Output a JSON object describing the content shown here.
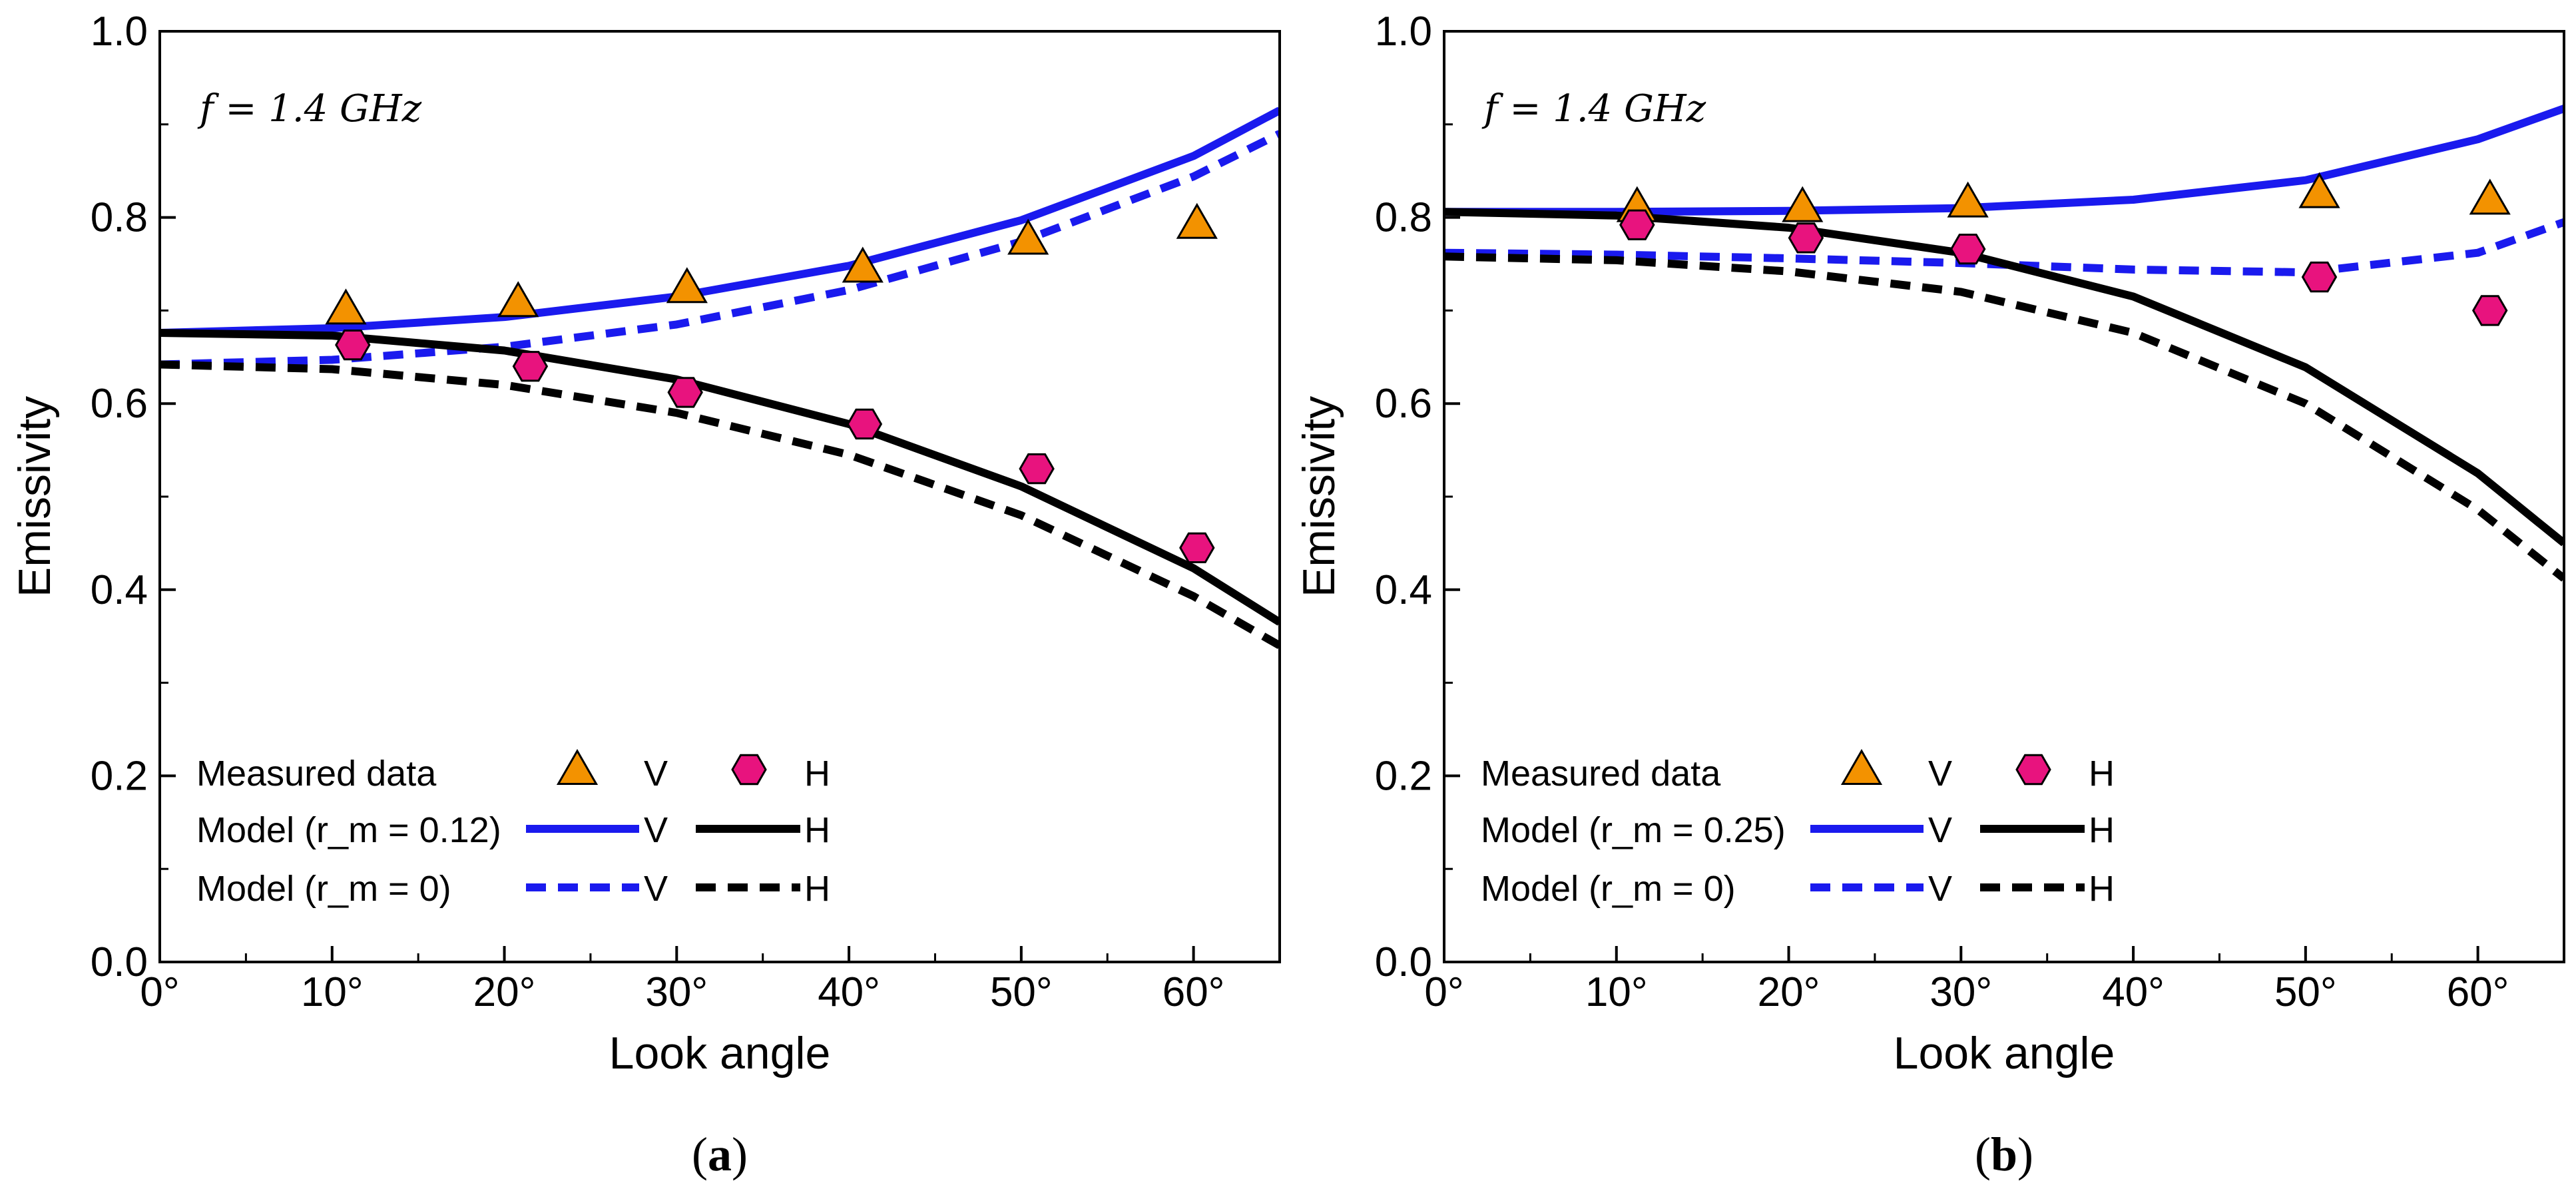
{
  "chart_data": [
    {
      "panel": "a",
      "caption_open": "(",
      "caption_letter": "a",
      "caption_close": ")",
      "type": "scatter+line",
      "annotation": "f = 1.4 GHz",
      "xlabel": "Look angle",
      "ylabel": "Emissivity",
      "xlim": [
        0,
        65
      ],
      "ylim": [
        0.0,
        1.0
      ],
      "xticks": [
        0,
        10,
        20,
        30,
        40,
        50,
        60
      ],
      "xtick_labels": [
        "0°",
        "10°",
        "20°",
        "30°",
        "40°",
        "50°",
        "60°"
      ],
      "yticks": [
        0.0,
        0.2,
        0.4,
        0.6,
        0.8,
        1.0
      ],
      "ytick_labels": [
        "0.0",
        "0.2",
        "0.4",
        "0.6",
        "0.8",
        "1.0"
      ],
      "legend": {
        "measured_label": "Measured data",
        "model_label": "Model (r_m = 0.12)",
        "model0_label": "Model (r_m = 0)",
        "v": "V",
        "h": "H"
      },
      "measured_v": {
        "x": [
          10.8,
          20.8,
          30.6,
          40.8,
          50.4,
          60.2
        ],
        "y": [
          0.7,
          0.708,
          0.723,
          0.745,
          0.775,
          0.792
        ]
      },
      "measured_h": {
        "x": [
          11.2,
          21.5,
          30.5,
          40.9,
          50.9,
          60.2
        ],
        "y": [
          0.663,
          0.64,
          0.612,
          0.578,
          0.53,
          0.445
        ]
      },
      "model_v": {
        "x": [
          0,
          10,
          20,
          30,
          40,
          50,
          60,
          65
        ],
        "y": [
          0.676,
          0.681,
          0.693,
          0.715,
          0.748,
          0.797,
          0.866,
          0.915
        ]
      },
      "model_h": {
        "x": [
          0,
          10,
          20,
          30,
          40,
          50,
          60,
          65
        ],
        "y": [
          0.676,
          0.673,
          0.657,
          0.626,
          0.578,
          0.511,
          0.423,
          0.365
        ]
      },
      "model0_v": {
        "x": [
          0,
          10,
          20,
          30,
          40,
          50,
          60,
          65
        ],
        "y": [
          0.642,
          0.647,
          0.661,
          0.685,
          0.722,
          0.774,
          0.844,
          0.89
        ]
      },
      "model0_h": {
        "x": [
          0,
          10,
          20,
          30,
          40,
          50,
          60,
          65
        ],
        "y": [
          0.642,
          0.637,
          0.62,
          0.59,
          0.545,
          0.48,
          0.393,
          0.34
        ]
      }
    },
    {
      "panel": "b",
      "caption_open": "(",
      "caption_letter": "b",
      "caption_close": ")",
      "type": "scatter+line",
      "annotation": "f = 1.4 GHz",
      "xlabel": "Look angle",
      "ylabel": "Emissivity",
      "xlim": [
        0,
        65
      ],
      "ylim": [
        0.0,
        1.0
      ],
      "xticks": [
        0,
        10,
        20,
        30,
        40,
        50,
        60
      ],
      "xtick_labels": [
        "0°",
        "10°",
        "20°",
        "30°",
        "40°",
        "50°",
        "60°"
      ],
      "yticks": [
        0.0,
        0.2,
        0.4,
        0.6,
        0.8,
        1.0
      ],
      "ytick_labels": [
        "0.0",
        "0.2",
        "0.4",
        "0.6",
        "0.8",
        "1.0"
      ],
      "legend": {
        "measured_label": "Measured data",
        "model_label": "Model (r_m = 0.25)",
        "model0_label": "Model (r_m = 0)",
        "v": "V",
        "h": "H"
      },
      "measured_v": {
        "x": [
          11.2,
          20.8,
          30.4,
          50.8,
          60.7
        ],
        "y": [
          0.81,
          0.81,
          0.815,
          0.825,
          0.818
        ]
      },
      "measured_h": {
        "x": [
          11.2,
          21.0,
          30.4,
          50.8,
          60.7
        ],
        "y": [
          0.792,
          0.778,
          0.766,
          0.736,
          0.7
        ]
      },
      "model_v": {
        "x": [
          0,
          10,
          20,
          30,
          40,
          50,
          60,
          65
        ],
        "y": [
          0.806,
          0.806,
          0.807,
          0.81,
          0.819,
          0.84,
          0.884,
          0.917
        ]
      },
      "model_h": {
        "x": [
          0,
          10,
          20,
          30,
          40,
          50,
          60,
          65
        ],
        "y": [
          0.806,
          0.802,
          0.789,
          0.762,
          0.715,
          0.639,
          0.525,
          0.45
        ]
      },
      "model0_v": {
        "x": [
          0,
          10,
          20,
          30,
          40,
          50,
          60,
          65
        ],
        "y": [
          0.762,
          0.76,
          0.756,
          0.751,
          0.744,
          0.741,
          0.762,
          0.795
        ]
      },
      "model0_h": {
        "x": [
          0,
          10,
          20,
          30,
          40,
          50,
          60,
          65
        ],
        "y": [
          0.758,
          0.754,
          0.742,
          0.72,
          0.676,
          0.6,
          0.486,
          0.412
        ]
      }
    }
  ]
}
